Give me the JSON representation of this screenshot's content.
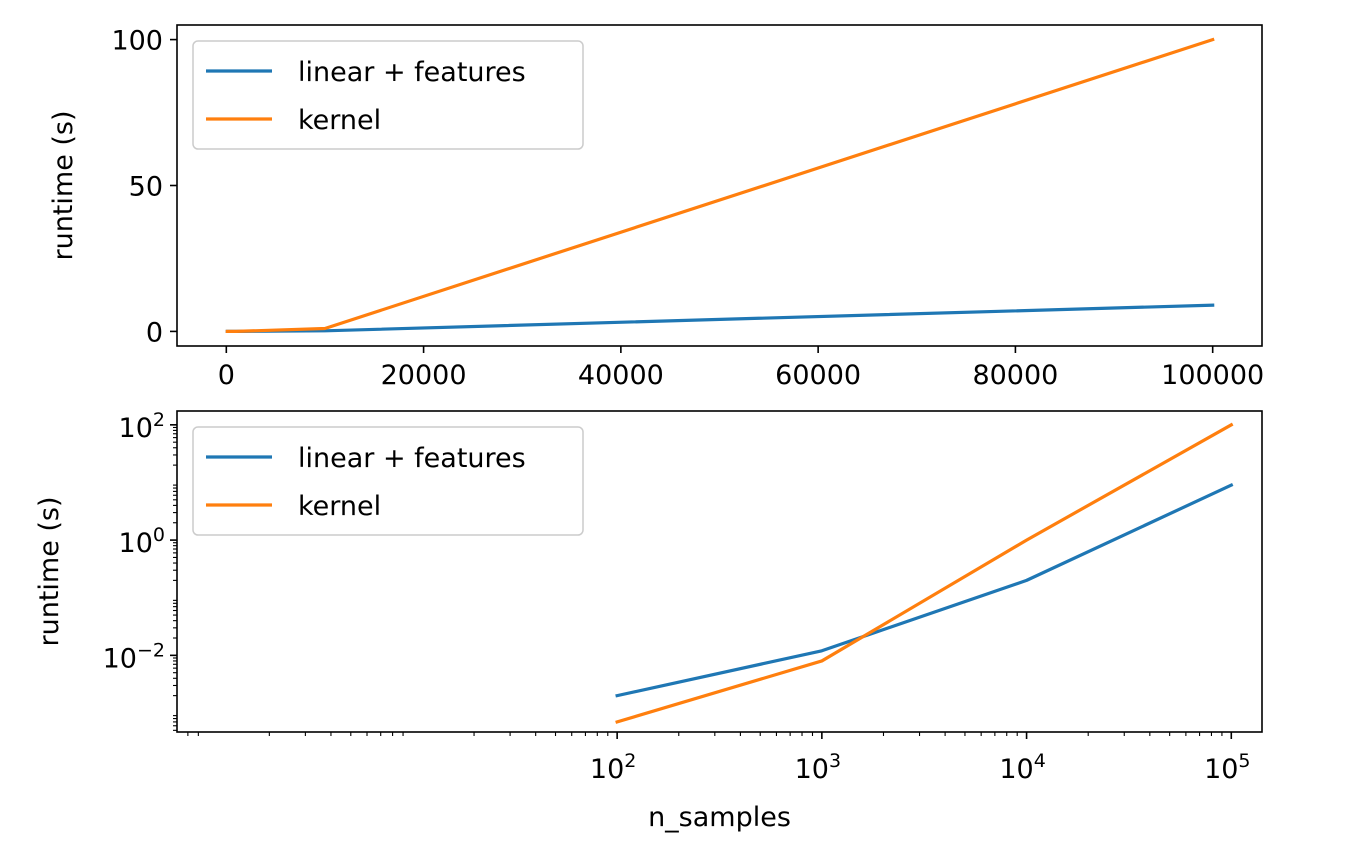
{
  "chart_data": [
    {
      "type": "line",
      "xscale": "linear",
      "yscale": "linear",
      "title": "",
      "xlabel": "",
      "ylabel": "runtime (s)",
      "x": [
        100,
        1000,
        10000,
        100000
      ],
      "xlim": [
        -5000,
        105000
      ],
      "ylim": [
        -5,
        105
      ],
      "xticks": [
        0,
        20000,
        40000,
        60000,
        80000,
        100000
      ],
      "xtick_labels": [
        "0",
        "20000",
        "40000",
        "60000",
        "80000",
        "100000"
      ],
      "yticks": [
        0,
        50,
        100
      ],
      "ytick_labels": [
        "0",
        "50",
        "100"
      ],
      "legend_position": "upper-left",
      "series": [
        {
          "name": "linear + features",
          "color": "#1f77b4",
          "values": [
            0.002,
            0.012,
            0.2,
            9
          ]
        },
        {
          "name": "kernel",
          "color": "#ff7f0e",
          "values": [
            0.0007,
            0.008,
            1.0,
            100
          ]
        }
      ]
    },
    {
      "type": "line",
      "xscale": "log",
      "yscale": "log",
      "title": "",
      "xlabel": "n_samples",
      "ylabel": "runtime (s)",
      "x": [
        100,
        1000,
        10000,
        100000
      ],
      "xlim_log10": [
        -0.15,
        5.15
      ],
      "ylim_log10": [
        -3.33,
        2.24
      ],
      "xticks": [
        100,
        1000,
        10000,
        100000
      ],
      "xtick_labels": [
        {
          "base": "10",
          "exp": "2"
        },
        {
          "base": "10",
          "exp": "3"
        },
        {
          "base": "10",
          "exp": "4"
        },
        {
          "base": "10",
          "exp": "5"
        }
      ],
      "yticks": [
        0.01,
        1,
        100
      ],
      "ytick_labels": [
        {
          "base": "10",
          "exp": "−2"
        },
        {
          "base": "10",
          "exp": "0"
        },
        {
          "base": "10",
          "exp": "2"
        }
      ],
      "legend_position": "upper-left",
      "series": [
        {
          "name": "linear + features",
          "color": "#1f77b4",
          "values": [
            0.002,
            0.012,
            0.2,
            9
          ]
        },
        {
          "name": "kernel",
          "color": "#ff7f0e",
          "values": [
            0.0007,
            0.008,
            1.0,
            100
          ]
        }
      ]
    }
  ]
}
